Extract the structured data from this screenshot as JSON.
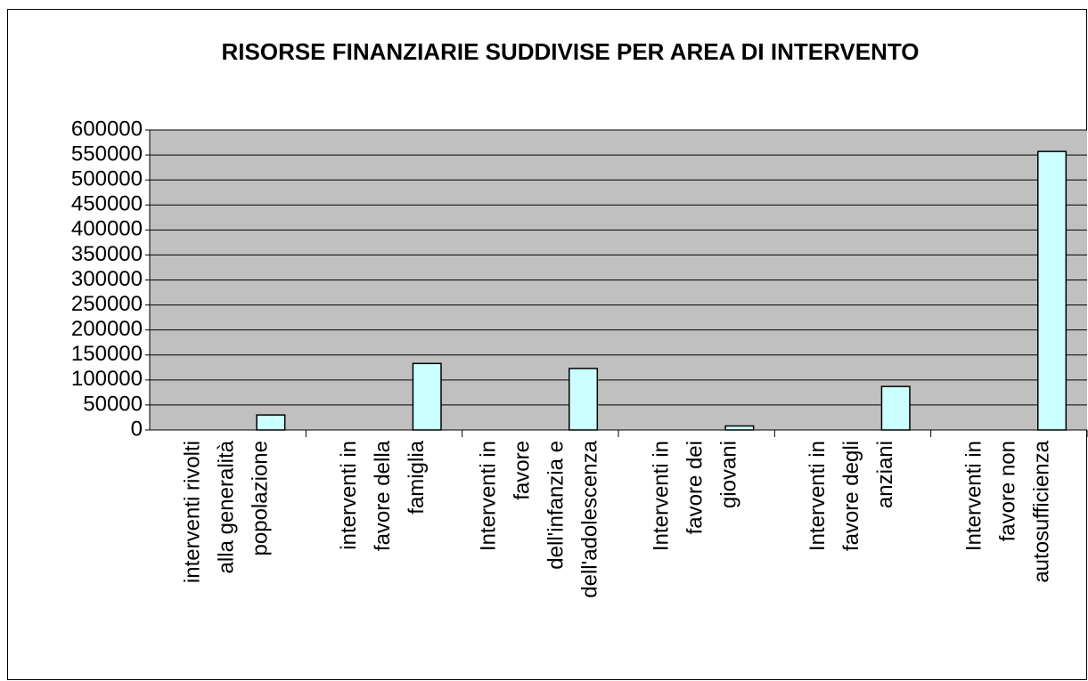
{
  "chart_data": {
    "type": "bar",
    "title": "RISORSE FINANZIARIE SUDDIVISE PER AREA DI INTERVENTO",
    "categories": [
      "interventi rivolti\nalla generalità\npopolazione",
      "interventi in\nfavore della\nfamiglia",
      "Interventi in\nfavore\ndell'infanzia e\ndell'adolescenza",
      "Interventi in\nfavore dei\ngiovani",
      "Interventi in\nfavore degli\nanziani",
      "Interventi in\nfavore non\nautosufficienza"
    ],
    "values": [
      30000,
      133000,
      123000,
      8000,
      87000,
      557000
    ],
    "color": "#ccffff",
    "ylim": [
      0,
      600000
    ],
    "yticks": [
      0,
      50000,
      100000,
      150000,
      200000,
      250000,
      300000,
      350000,
      400000,
      450000,
      500000,
      550000,
      600000
    ],
    "grid": true
  }
}
